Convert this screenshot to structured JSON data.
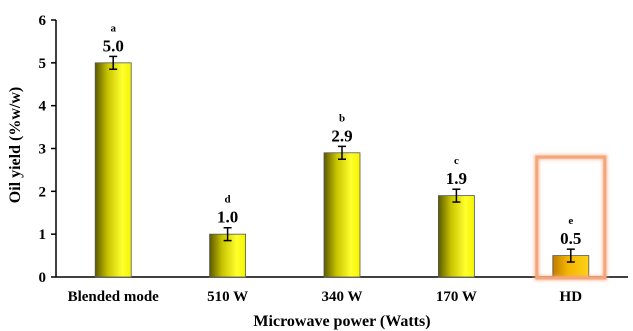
{
  "chart_data": {
    "type": "bar",
    "xlabel": "Microwave power (Watts)",
    "ylabel": "Oil yield (%w/w)",
    "ylim": [
      0,
      6
    ],
    "yticks": [
      0,
      1,
      2,
      3,
      4,
      5,
      6
    ],
    "grid": false,
    "categories": [
      "Blended mode",
      "510 W",
      "340 W",
      "170 W",
      "HD"
    ],
    "values": [
      5.0,
      1.0,
      2.9,
      1.9,
      0.5
    ],
    "value_labels": [
      "5.0",
      "1.0",
      "2.9",
      "1.9",
      "0.5"
    ],
    "errors": [
      0.15,
      0.15,
      0.15,
      0.15,
      0.15
    ],
    "significance_letters": [
      "a",
      "d",
      "b",
      "c",
      "e"
    ],
    "bar_colors": [
      "#ffff33",
      "#ffff33",
      "#ffff33",
      "#ffff33",
      "#ffcc00"
    ],
    "highlight": {
      "category": "HD",
      "color": "#f5a57a"
    }
  }
}
